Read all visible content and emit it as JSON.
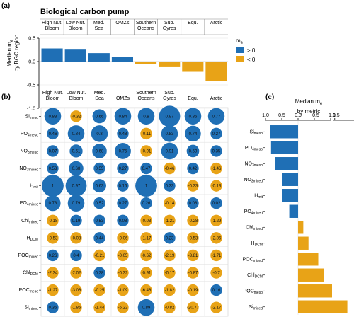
{
  "panel_labels": {
    "a": "(a)",
    "b": "(b)",
    "c": "(c)"
  },
  "colors": {
    "positive": "#1f6fb5",
    "negative": "#e8a317"
  },
  "chart_data": [
    {
      "type": "bar",
      "panel": "a",
      "title": "Biological carbon pump",
      "ylabel_line1": "Median me",
      "ylabel_line2": "by BGC region",
      "categories": [
        [
          "High Nut.",
          "Bloom"
        ],
        [
          "Low Nut.",
          "Bloom"
        ],
        [
          "Med.",
          "Sea"
        ],
        [
          "OMZs"
        ],
        [
          "Southern",
          "Oceans"
        ],
        [
          "Sub.",
          "Gyres"
        ],
        [
          "Equ."
        ],
        [
          "Arctic"
        ]
      ],
      "values": [
        0.28,
        0.27,
        0.18,
        0.1,
        -0.05,
        -0.12,
        -0.22,
        -0.42
      ],
      "ylim": [
        -1.0,
        0.5
      ],
      "yticks": [
        "0.5",
        "0.0",
        "-0.5",
        "-1.0"
      ],
      "ytick_values": [
        0.5,
        0.0,
        -0.5,
        -1.0
      ],
      "legend": {
        "title": "me",
        "entries": [
          "> 0",
          "< 0"
        ]
      }
    },
    {
      "type": "heatmap",
      "panel": "b",
      "columns": [
        [
          "High Nut.",
          "Bloom"
        ],
        [
          "Low Nut.",
          "Bloom"
        ],
        [
          "Med.",
          "Sea"
        ],
        [
          "OMZs"
        ],
        [
          "Southern",
          "Oceans"
        ],
        [
          "Sub.",
          "Gyres"
        ],
        [
          "Equ."
        ],
        [
          "Arctic"
        ]
      ],
      "rows": [
        {
          "base": "Si",
          "sub": "meso",
          "values": [
            "0.83",
            "-0.32",
            "0.66",
            "0.84",
            "0.8",
            "0.97",
            "0.86",
            "0.77"
          ]
        },
        {
          "base": "PO",
          "sub4": "4",
          "sub": "meso",
          "values": [
            "0.46",
            "0.84",
            "0.8",
            "0.48",
            "-0.11",
            "0.83",
            "0.74",
            "0.27"
          ]
        },
        {
          "base": "NO",
          "sub4": "3",
          "sub": "meso",
          "values": [
            "0.07",
            "0.61",
            "0.68",
            "0.75",
            "-0.91",
            "0.91",
            "0.59",
            "0.35"
          ]
        },
        {
          "base": "NO",
          "sub4": "3",
          "sub": "mixed",
          "values": [
            "0.53",
            "0.68",
            "0.55",
            "0.27",
            "0.47",
            "-0.46",
            "0.42",
            "-1.46"
          ]
        },
        {
          "base": "H",
          "sub": "mit",
          "values": [
            "1",
            "0.97",
            "0.63",
            "0.16",
            "1",
            "0.33",
            "-0.33",
            "-0.13"
          ]
        },
        {
          "base": "PO",
          "sub4": "4",
          "sub": "mixed",
          "values": [
            "0.73",
            "0.79",
            "0.52",
            "0.27",
            "0.26",
            "-0.14",
            "0.08",
            "0.02"
          ]
        },
        {
          "base": "Chl",
          "sub": "mixed",
          "values": [
            "-0.18",
            "0.19",
            "0.53",
            "0.08",
            "-0.03",
            "-1.21",
            "-0.28",
            "-1.29"
          ]
        },
        {
          "base": "H",
          "sub": "DCM",
          "values": [
            "-0.53",
            "-0.08",
            "0.44",
            "-0.06",
            "-1.17",
            "0.23",
            "-0.53",
            "-2.86"
          ]
        },
        {
          "base": "POC",
          "sub": "mixed",
          "values": [
            "0.26",
            "0.4",
            "-0.21",
            "-0.05",
            "-0.62",
            "-2.19",
            "-3.81",
            "-1.71"
          ]
        },
        {
          "base": "Chl",
          "sub": "DCM",
          "values": [
            "-2.34",
            "-2.02",
            "0.28",
            "-0.32",
            "-0.91",
            "-0.17",
            "-0.87",
            "-0.7"
          ]
        },
        {
          "base": "POC",
          "sub": "meso",
          "values": [
            "-1.27",
            "-3.06",
            "-0.25",
            "-1.09",
            "-6.46",
            "-1.82",
            "-0.19",
            "0.16"
          ]
        },
        {
          "base": "Si",
          "sub": "mixed",
          "values": [
            "0.36",
            "-1.86",
            "-1.44",
            "-5.22",
            "0.89",
            "-0.82",
            "-20.77",
            "-2.17"
          ]
        }
      ]
    },
    {
      "type": "bar",
      "panel": "c",
      "orientation": "horizontal",
      "title_line1": "Median me",
      "title_line2": "by metric",
      "xticks_left": [
        "1.0",
        "0.5",
        "0.0",
        "−0.5",
        "−1.0"
      ],
      "xtick_values_left": [
        1.0,
        0.5,
        0.0,
        -0.5,
        -1.0
      ],
      "xticks_right": [
        "−1.5",
        "−2"
      ],
      "xtick_values_right": [
        -1.5,
        -2.0
      ],
      "xlim": [
        1.0,
        -2.0
      ],
      "axis_break": [
        -1.0,
        -1.45
      ],
      "values": [
        0.85,
        0.83,
        0.71,
        0.49,
        0.48,
        0.27,
        -0.16,
        -0.32,
        -0.62,
        -0.79,
        -1.12,
        -1.82
      ]
    }
  ]
}
